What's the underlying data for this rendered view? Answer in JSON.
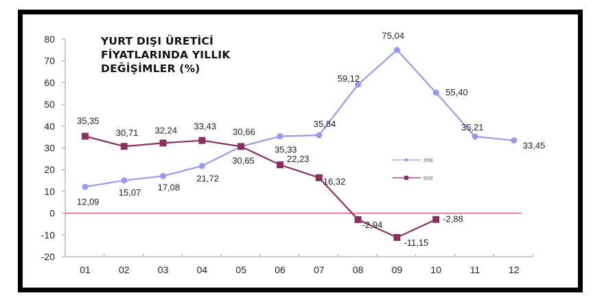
{
  "title_lines": [
    "YURT DIŞI ÜRETİCİ",
    "FİYATLARINDA YILLIK",
    "DEĞİŞİMLER (%)"
  ],
  "colors": {
    "series_2018": "#9999ee",
    "series_2019": "#8b2f5f",
    "zero_line": "#cc3333",
    "axis": "#999999",
    "frame": "#000000"
  },
  "legend": [
    {
      "label": "2018",
      "marker": "circle"
    },
    {
      "label": "2019",
      "marker": "square"
    }
  ],
  "chart_data": {
    "type": "line",
    "title": "YURT DIŞI ÜRETİCİ FİYATLARINDA YILLIK DEĞİŞİMLER (%)",
    "xlabel": "",
    "ylabel": "",
    "categories": [
      "01",
      "02",
      "03",
      "04",
      "05",
      "06",
      "07",
      "08",
      "09",
      "10",
      "11",
      "12"
    ],
    "yticks": [
      80,
      70,
      60,
      50,
      40,
      30,
      20,
      10,
      0,
      -10,
      -20
    ],
    "ylim": [
      -20,
      80
    ],
    "grid": false,
    "legend_position": "right-middle",
    "series": [
      {
        "name": "2018",
        "values": [
          12.09,
          15.07,
          17.08,
          21.72,
          30.65,
          35.33,
          35.84,
          59.12,
          75.04,
          55.4,
          35.21,
          33.45
        ],
        "labels": [
          "12,09",
          "15,07",
          "17,08",
          "21,72",
          "30,65",
          "35,33",
          "35,84",
          "59,12",
          "75,04",
          "55,40",
          "35,21",
          "33,45"
        ]
      },
      {
        "name": "2019",
        "values": [
          35.35,
          30.71,
          32.24,
          33.43,
          30.66,
          22.23,
          16.32,
          -2.94,
          -11.15,
          -2.88,
          null,
          null
        ],
        "labels": [
          "35,35",
          "30,71",
          "32,24",
          "33,43",
          "30,66",
          "22,23",
          "16,32",
          "-2,94",
          "-11,15",
          "-2,88",
          null,
          null
        ]
      }
    ],
    "reference_line": {
      "y": 0
    }
  }
}
